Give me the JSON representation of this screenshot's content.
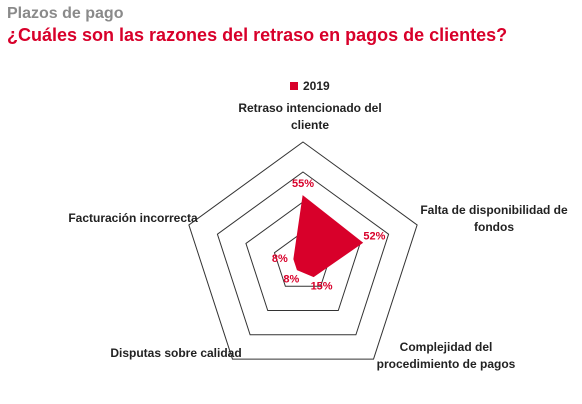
{
  "header": {
    "supertitle": "Plazos de pago",
    "title": "¿Cuáles son las razones del retraso en pagos de clientes?"
  },
  "chart_data": {
    "type": "radar",
    "categories": [
      "Retraso intencionado del cliente",
      "Falta de disponibilidad de fondos",
      "Complejidad del procedimiento de pagos",
      "Disputas sobre calidad",
      "Facturación incorrecta"
    ],
    "category_lines": [
      [
        "Retraso intencionado del",
        "cliente"
      ],
      [
        "Falta de disponibilidad de",
        "fondos"
      ],
      [
        "Complejidad del",
        "procedimiento de pagos"
      ],
      [
        "Disputas sobre calidad"
      ],
      [
        "Facturación incorrecta"
      ]
    ],
    "series": [
      {
        "name": "2019",
        "values": [
          55,
          52,
          15,
          8,
          8
        ],
        "labels": [
          "55%",
          "52%",
          "15%",
          "8%",
          "8%"
        ]
      }
    ],
    "rlim": [
      0,
      100
    ],
    "rings": 4,
    "legend": "top-center",
    "colors": {
      "series": "#d8002a",
      "grid": "#333333",
      "label": "#d8002a"
    }
  }
}
